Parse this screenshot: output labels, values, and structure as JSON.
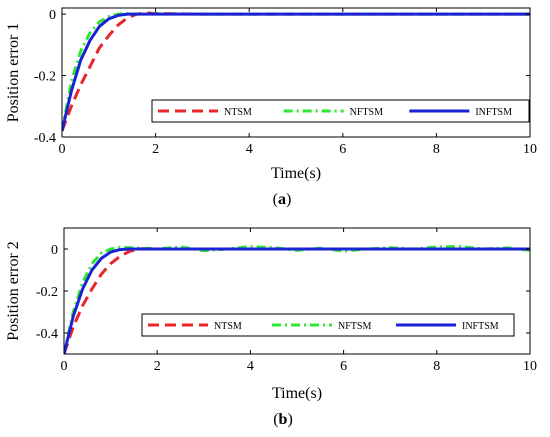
{
  "chart_data": [
    {
      "type": "line",
      "caption": "(a)",
      "caption_letter": "a",
      "xlabel": "Time(s)",
      "ylabel": "Position error 1",
      "xlim": [
        0,
        10
      ],
      "ylim": [
        -0.4,
        0.02
      ],
      "xticks": [
        "0",
        "2",
        "4",
        "6",
        "8",
        "10"
      ],
      "yticks": [
        "-0.4",
        "-0.2",
        "0"
      ],
      "legend_position": "lower-right",
      "series": [
        {
          "name": "NTSM",
          "color": "#e8262a",
          "style": "dashed",
          "x": [
            0,
            0.2,
            0.4,
            0.6,
            0.8,
            1.0,
            1.2,
            1.4,
            1.6,
            1.8,
            2.0,
            3,
            4,
            5,
            6,
            7,
            8,
            9,
            10
          ],
          "y": [
            -0.38,
            -0.3,
            -0.23,
            -0.17,
            -0.11,
            -0.07,
            -0.035,
            -0.012,
            0.0,
            0.004,
            0.002,
            0.0,
            0.0,
            0.0,
            0.0,
            0.0,
            0.0,
            0.0,
            0.0
          ]
        },
        {
          "name": "NFTSM",
          "color": "#2ee82e",
          "style": "dashdot",
          "x": [
            0,
            0.2,
            0.4,
            0.6,
            0.8,
            1.0,
            1.2,
            1.4,
            1.6,
            2.0,
            3,
            4,
            5,
            6,
            7,
            8,
            9,
            10
          ],
          "y": [
            -0.38,
            -0.22,
            -0.12,
            -0.06,
            -0.025,
            -0.008,
            0.0,
            0.002,
            0.0,
            0.001,
            0.0,
            0.0,
            0.0,
            0.0,
            0.0,
            0.0,
            0.0,
            0.0
          ]
        },
        {
          "name": "INFTSM",
          "color": "#1a22d6",
          "style": "solid",
          "x": [
            0,
            0.2,
            0.4,
            0.6,
            0.8,
            1.0,
            1.2,
            1.4,
            1.6,
            2.0,
            3,
            4,
            5,
            6,
            7,
            8,
            9,
            10
          ],
          "y": [
            -0.38,
            -0.25,
            -0.15,
            -0.085,
            -0.04,
            -0.015,
            -0.004,
            0.0,
            0.0,
            0.0,
            0.0,
            0.0,
            0.0,
            0.0,
            0.0,
            0.0,
            0.0,
            0.0
          ]
        }
      ]
    },
    {
      "type": "line",
      "caption": "(b)",
      "caption_letter": "b",
      "xlabel": "Time(s)",
      "ylabel": "Position error 2",
      "xlim": [
        0,
        10
      ],
      "ylim": [
        -0.5,
        0.1
      ],
      "xticks": [
        "0",
        "2",
        "4",
        "6",
        "8",
        "10"
      ],
      "yticks": [
        "-0.4",
        "-0.2",
        "0"
      ],
      "legend_position": "lower-right",
      "series": [
        {
          "name": "NTSM",
          "color": "#e8262a",
          "style": "dashed",
          "x": [
            0,
            0.2,
            0.4,
            0.6,
            0.8,
            1.0,
            1.2,
            1.4,
            1.6,
            1.8,
            2.0,
            3,
            4,
            5,
            6,
            7,
            8,
            9,
            10
          ],
          "y": [
            -0.5,
            -0.37,
            -0.27,
            -0.19,
            -0.12,
            -0.07,
            -0.035,
            -0.012,
            0.0,
            0.003,
            0.0,
            0.0,
            0.0,
            0.0,
            0.0,
            0.0,
            0.0,
            0.0,
            0.0
          ]
        },
        {
          "name": "NFTSM",
          "color": "#2ee82e",
          "style": "dashdot",
          "x": [
            0,
            0.2,
            0.4,
            0.6,
            0.8,
            1.0,
            1.2,
            1.5,
            2.0,
            2.5,
            3.0,
            3.5,
            4.0,
            4.5,
            5.0,
            5.5,
            6.0,
            6.5,
            7.0,
            7.5,
            8.0,
            8.5,
            9.0,
            9.5,
            10
          ],
          "y": [
            -0.5,
            -0.3,
            -0.16,
            -0.07,
            -0.02,
            0.0,
            0.008,
            0.005,
            0.0,
            0.01,
            -0.008,
            0.0,
            0.012,
            0.006,
            -0.006,
            0.004,
            -0.01,
            0.0,
            0.006,
            0.0,
            0.01,
            0.012,
            0.0,
            0.005,
            -0.006
          ]
        },
        {
          "name": "INFTSM",
          "color": "#1a22d6",
          "style": "solid",
          "x": [
            0,
            0.2,
            0.4,
            0.6,
            0.8,
            1.0,
            1.2,
            1.4,
            1.6,
            2.0,
            3,
            4,
            5,
            6,
            7,
            8,
            9,
            10
          ],
          "y": [
            -0.5,
            -0.32,
            -0.19,
            -0.1,
            -0.045,
            -0.015,
            -0.003,
            0.0,
            0.0,
            0.0,
            0.0,
            0.0,
            0.0,
            0.0,
            0.0,
            0.0,
            0.0,
            0.0
          ]
        }
      ]
    }
  ]
}
